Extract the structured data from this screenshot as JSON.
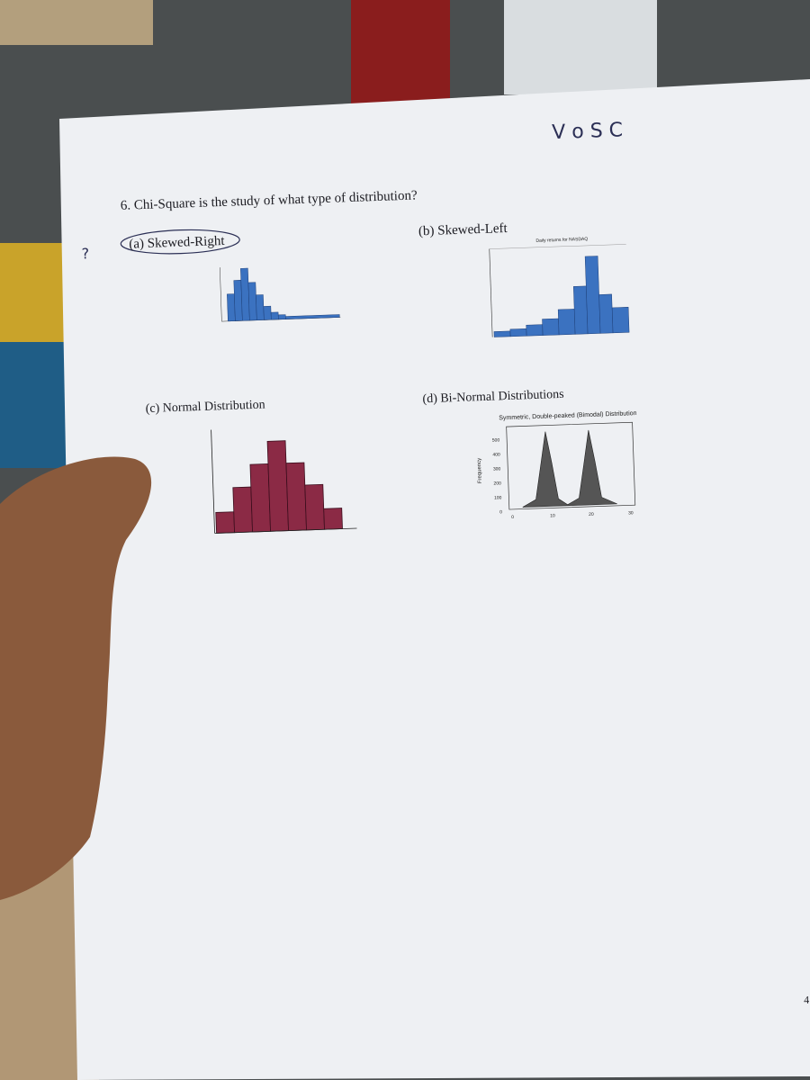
{
  "handwriting": {
    "top": "V o S C",
    "margin": "?"
  },
  "question": {
    "text": "6. Chi-Square is the study of what type of distribution?",
    "options": [
      "(a) Skewed-Right",
      "(b) Skewed-Left",
      "(c) Normal Distribution",
      "(d) Bi-Normal Distributions"
    ]
  },
  "figure_b": {
    "title": "Daily returns for NASDAQ"
  },
  "figure_d": {
    "title": "Symmetric, Double-peaked (Bimodal) Distribution",
    "y_label": "Frequency",
    "y_ticks": [
      "500",
      "400",
      "300",
      "200",
      "100",
      "0"
    ],
    "x_ticks": [
      "0",
      "10",
      "20",
      "30"
    ]
  },
  "page_number": "4"
}
